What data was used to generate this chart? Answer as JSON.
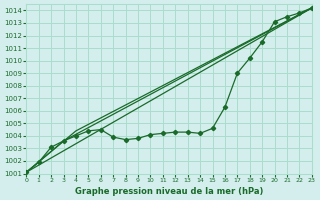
{
  "background_color": "#d4eeee",
  "grid_color": "#aaddcc",
  "line_color": "#1a6b2a",
  "xlabel": "Graphe pression niveau de la mer (hPa)",
  "ylim": [
    1001,
    1014.5
  ],
  "xlim": [
    0,
    23
  ],
  "yticks": [
    1001,
    1002,
    1003,
    1004,
    1005,
    1006,
    1007,
    1008,
    1009,
    1010,
    1011,
    1012,
    1013,
    1014
  ],
  "xticks": [
    0,
    1,
    2,
    3,
    4,
    5,
    6,
    7,
    8,
    9,
    10,
    11,
    12,
    13,
    14,
    15,
    16,
    17,
    18,
    19,
    20,
    21,
    22,
    23
  ],
  "line1_x": [
    0,
    1,
    2,
    3,
    4,
    5,
    6,
    7,
    8,
    9,
    10,
    11,
    12,
    13,
    14,
    15,
    16,
    17,
    18,
    19,
    20,
    21,
    22,
    23
  ],
  "line1_y": [
    1001.1,
    1001.9,
    1003.1,
    1003.6,
    1004.0,
    1004.4,
    1004.5,
    1003.9,
    1003.7,
    1003.8,
    1004.1,
    1004.2,
    1004.3,
    1004.3,
    1004.2,
    1004.6,
    1006.3,
    1009.0,
    1010.2,
    1011.5,
    1013.1,
    1013.5,
    1013.8,
    1014.2
  ],
  "line2_x": [
    0,
    23
  ],
  "line2_y": [
    1001.1,
    1014.2
  ],
  "line3_x": [
    0,
    4,
    23
  ],
  "line3_y": [
    1001.1,
    1004.4,
    1014.2
  ],
  "line4_x": [
    0,
    3,
    23
  ],
  "line4_y": [
    1001.1,
    1003.6,
    1014.2
  ]
}
